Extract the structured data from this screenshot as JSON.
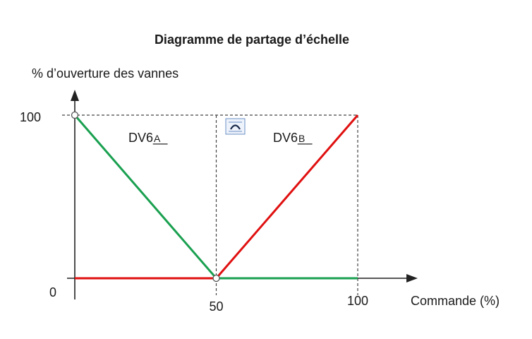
{
  "chart_data": {
    "type": "line",
    "title": "Diagramme de partage d’échelle",
    "ylabel": "% d’ouverture des vannes",
    "xlabel": "Commande (%)",
    "xlim": [
      0,
      100
    ],
    "ylim": [
      0,
      100
    ],
    "x_ticks": [
      "0",
      "50",
      "100"
    ],
    "y_ticks": [
      "100"
    ],
    "series": [
      {
        "name": "DV6_A",
        "label_main": "DV6",
        "label_sub": "A",
        "color": "#1aa050",
        "x": [
          0,
          50,
          100
        ],
        "y": [
          100,
          0,
          0
        ]
      },
      {
        "name": "DV6_B",
        "label_main": "DV6",
        "label_sub": "B",
        "color": "#e01010",
        "x": [
          0,
          50,
          100
        ],
        "y": [
          0,
          0,
          100
        ]
      }
    ],
    "reference_lines": {
      "color": "#444444",
      "style": "dashed"
    }
  },
  "icons": {
    "overlay": "anchor-icon"
  }
}
